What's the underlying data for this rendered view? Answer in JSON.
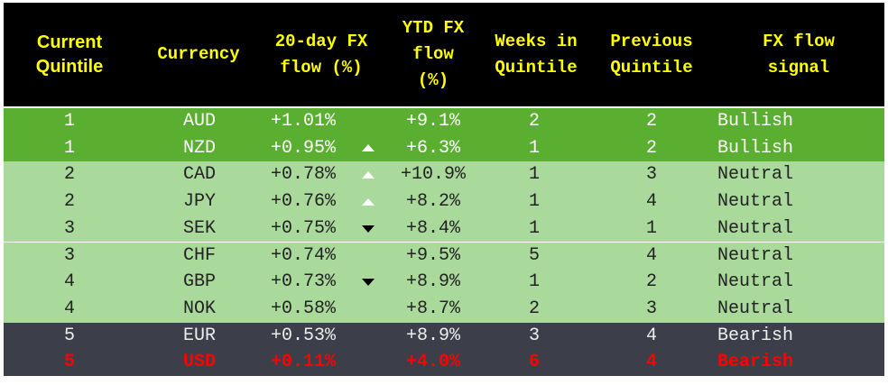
{
  "table": {
    "header": [
      [
        "Current",
        "Quintile"
      ],
      [
        "Currency"
      ],
      [
        "20-day FX",
        "flow (%)"
      ],
      [
        "YTD FX",
        "flow",
        "(%)"
      ],
      [
        "Weeks in",
        "Quintile"
      ],
      [
        "Previous",
        "Quintile"
      ],
      [
        "FX flow",
        "signal"
      ]
    ],
    "rows": [
      [
        "1",
        "AUD",
        "+1.01%",
        "+9.1%",
        "2",
        "2",
        "Bullish"
      ],
      [
        "1",
        "NZD",
        "+0.95%",
        "+6.3%",
        "1",
        "2",
        "Bullish"
      ],
      [
        "2",
        "CAD",
        "+0.78%",
        "+10.9%",
        "1",
        "3",
        "Neutral"
      ],
      [
        "2",
        "JPY",
        "+0.76%",
        "+8.2%",
        "1",
        "4",
        "Neutral"
      ],
      [
        "3",
        "SEK",
        "+0.75%",
        "+8.4%",
        "1",
        "1",
        "Neutral"
      ],
      [
        "3",
        "CHF",
        "+0.74%",
        "+9.5%",
        "5",
        "4",
        "Neutral"
      ],
      [
        "4",
        "GBP",
        "+0.73%",
        "+8.9%",
        "1",
        "2",
        "Neutral"
      ],
      [
        "4",
        "NOK",
        "+0.58%",
        "+8.7%",
        "2",
        "3",
        "Neutral"
      ],
      [
        "5",
        "EUR",
        "+0.53%",
        "+8.9%",
        "3",
        "4",
        "Bearish"
      ],
      [
        "5",
        "USD",
        "+0.11%",
        "+4.0%",
        "6",
        "4",
        "Bearish"
      ]
    ]
  }
}
